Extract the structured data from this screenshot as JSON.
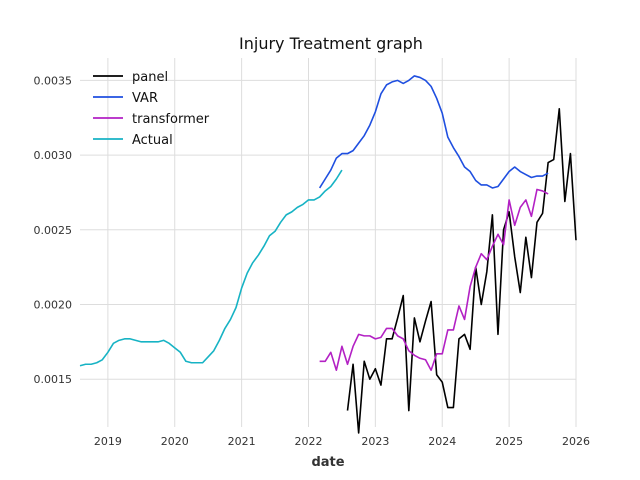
{
  "chart_data": {
    "type": "line",
    "title": "Injury Treatment graph",
    "xlabel": "date",
    "ylabel": "",
    "xlim": [
      "2018-08",
      "2026-01"
    ],
    "ylim": [
      0.00118,
      0.00365
    ],
    "x_ticks": [
      "2019",
      "2020",
      "2021",
      "2022",
      "2023",
      "2024",
      "2025",
      "2026"
    ],
    "y_ticks": [
      "0.0015",
      "0.0020",
      "0.0025",
      "0.0030",
      "0.0035"
    ],
    "grid": true,
    "legend_position": "top-left",
    "series": [
      {
        "name": "panel",
        "color": "#000000",
        "x": [
          "2022-08",
          "2022-09",
          "2022-10",
          "2022-11",
          "2022-12",
          "2023-01",
          "2023-02",
          "2023-03",
          "2023-04",
          "2023-05",
          "2023-06",
          "2023-07",
          "2023-08",
          "2023-09",
          "2023-10",
          "2023-11",
          "2023-12",
          "2024-01",
          "2024-02",
          "2024-03",
          "2024-04",
          "2024-05",
          "2024-06",
          "2024-07",
          "2024-08",
          "2024-09",
          "2024-10",
          "2024-11",
          "2024-12",
          "2025-01",
          "2025-02",
          "2025-03",
          "2025-04",
          "2025-05",
          "2025-06",
          "2025-07",
          "2025-08",
          "2025-09",
          "2025-10",
          "2025-11",
          "2025-12",
          "2026-01"
        ],
        "values": [
          0.00129,
          0.0016,
          0.00114,
          0.00162,
          0.0015,
          0.00157,
          0.00146,
          0.00177,
          0.00177,
          0.00191,
          0.00206,
          0.00129,
          0.00191,
          0.00175,
          0.00189,
          0.00202,
          0.00153,
          0.00148,
          0.00131,
          0.00131,
          0.00177,
          0.0018,
          0.0017,
          0.00225,
          0.002,
          0.00222,
          0.0026,
          0.0018,
          0.0025,
          0.00262,
          0.00232,
          0.00208,
          0.00245,
          0.00218,
          0.00255,
          0.00261,
          0.00295,
          0.00297,
          0.00331,
          0.00269,
          0.00301,
          0.00243
        ]
      },
      {
        "name": "VAR",
        "color": "#1f4fe0",
        "x": [
          "2022-03",
          "2022-04",
          "2022-05",
          "2022-06",
          "2022-07",
          "2022-08",
          "2022-09",
          "2022-10",
          "2022-11",
          "2022-12",
          "2023-01",
          "2023-02",
          "2023-03",
          "2023-04",
          "2023-05",
          "2023-06",
          "2023-07",
          "2023-08",
          "2023-09",
          "2023-10",
          "2023-11",
          "2023-12",
          "2024-01",
          "2024-02",
          "2024-03",
          "2024-04",
          "2024-05",
          "2024-06",
          "2024-07",
          "2024-08",
          "2024-09",
          "2024-10",
          "2024-11",
          "2024-12",
          "2025-01",
          "2025-02",
          "2025-03",
          "2025-04",
          "2025-05",
          "2025-06",
          "2025-07",
          "2025-08"
        ],
        "values": [
          0.00278,
          0.00284,
          0.0029,
          0.00298,
          0.00301,
          0.00301,
          0.00303,
          0.00308,
          0.00313,
          0.0032,
          0.00329,
          0.00341,
          0.00347,
          0.00349,
          0.0035,
          0.00348,
          0.0035,
          0.00353,
          0.00352,
          0.0035,
          0.00346,
          0.00338,
          0.00328,
          0.00312,
          0.00305,
          0.00299,
          0.00292,
          0.00289,
          0.00283,
          0.0028,
          0.0028,
          0.00278,
          0.00279,
          0.00284,
          0.00289,
          0.00292,
          0.00289,
          0.00287,
          0.00285,
          0.00286,
          0.00286,
          0.00288
        ]
      },
      {
        "name": "transformer",
        "color": "#b321c4",
        "x": [
          "2022-03",
          "2022-04",
          "2022-05",
          "2022-06",
          "2022-07",
          "2022-08",
          "2022-09",
          "2022-10",
          "2022-11",
          "2022-12",
          "2023-01",
          "2023-02",
          "2023-03",
          "2023-04",
          "2023-05",
          "2023-06",
          "2023-07",
          "2023-08",
          "2023-09",
          "2023-10",
          "2023-11",
          "2023-12",
          "2024-01",
          "2024-02",
          "2024-03",
          "2024-04",
          "2024-05",
          "2024-06",
          "2024-07",
          "2024-08",
          "2024-09",
          "2024-10",
          "2024-11",
          "2024-12",
          "2025-01",
          "2025-02",
          "2025-03",
          "2025-04",
          "2025-05",
          "2025-06",
          "2025-07",
          "2025-08"
        ],
        "values": [
          0.00162,
          0.00162,
          0.00168,
          0.00156,
          0.00172,
          0.0016,
          0.00172,
          0.0018,
          0.00179,
          0.00179,
          0.00177,
          0.00178,
          0.00184,
          0.00184,
          0.00179,
          0.00177,
          0.00169,
          0.00166,
          0.00164,
          0.00163,
          0.00156,
          0.00167,
          0.00167,
          0.00183,
          0.00183,
          0.00199,
          0.0019,
          0.00212,
          0.00225,
          0.00234,
          0.0023,
          0.00239,
          0.00247,
          0.0024,
          0.0027,
          0.00253,
          0.00265,
          0.0027,
          0.00259,
          0.00277,
          0.00276,
          0.00274
        ]
      },
      {
        "name": "Actual",
        "color": "#17b3c4",
        "x": [
          "2018-08",
          "2018-09",
          "2018-10",
          "2018-11",
          "2018-12",
          "2019-01",
          "2019-02",
          "2019-03",
          "2019-04",
          "2019-05",
          "2019-06",
          "2019-07",
          "2019-08",
          "2019-09",
          "2019-10",
          "2019-11",
          "2019-12",
          "2020-01",
          "2020-02",
          "2020-03",
          "2020-04",
          "2020-05",
          "2020-06",
          "2020-07",
          "2020-08",
          "2020-09",
          "2020-10",
          "2020-11",
          "2020-12",
          "2021-01",
          "2021-02",
          "2021-03",
          "2021-04",
          "2021-05",
          "2021-06",
          "2021-07",
          "2021-08",
          "2021-09",
          "2021-10",
          "2021-11",
          "2021-12",
          "2022-01",
          "2022-02",
          "2022-03",
          "2022-04",
          "2022-05",
          "2022-06",
          "2022-07"
        ],
        "values": [
          0.00159,
          0.0016,
          0.0016,
          0.00161,
          0.00163,
          0.00168,
          0.00174,
          0.00176,
          0.00177,
          0.00177,
          0.00176,
          0.00175,
          0.00175,
          0.00175,
          0.00175,
          0.00176,
          0.00174,
          0.00171,
          0.00168,
          0.00162,
          0.00161,
          0.00161,
          0.00161,
          0.00165,
          0.00169,
          0.00176,
          0.00184,
          0.0019,
          0.00198,
          0.00211,
          0.00221,
          0.00228,
          0.00233,
          0.00239,
          0.00246,
          0.00249,
          0.00255,
          0.0026,
          0.00262,
          0.00265,
          0.00267,
          0.0027,
          0.0027,
          0.00272,
          0.00276,
          0.00279,
          0.00284,
          0.0029
        ]
      }
    ]
  }
}
